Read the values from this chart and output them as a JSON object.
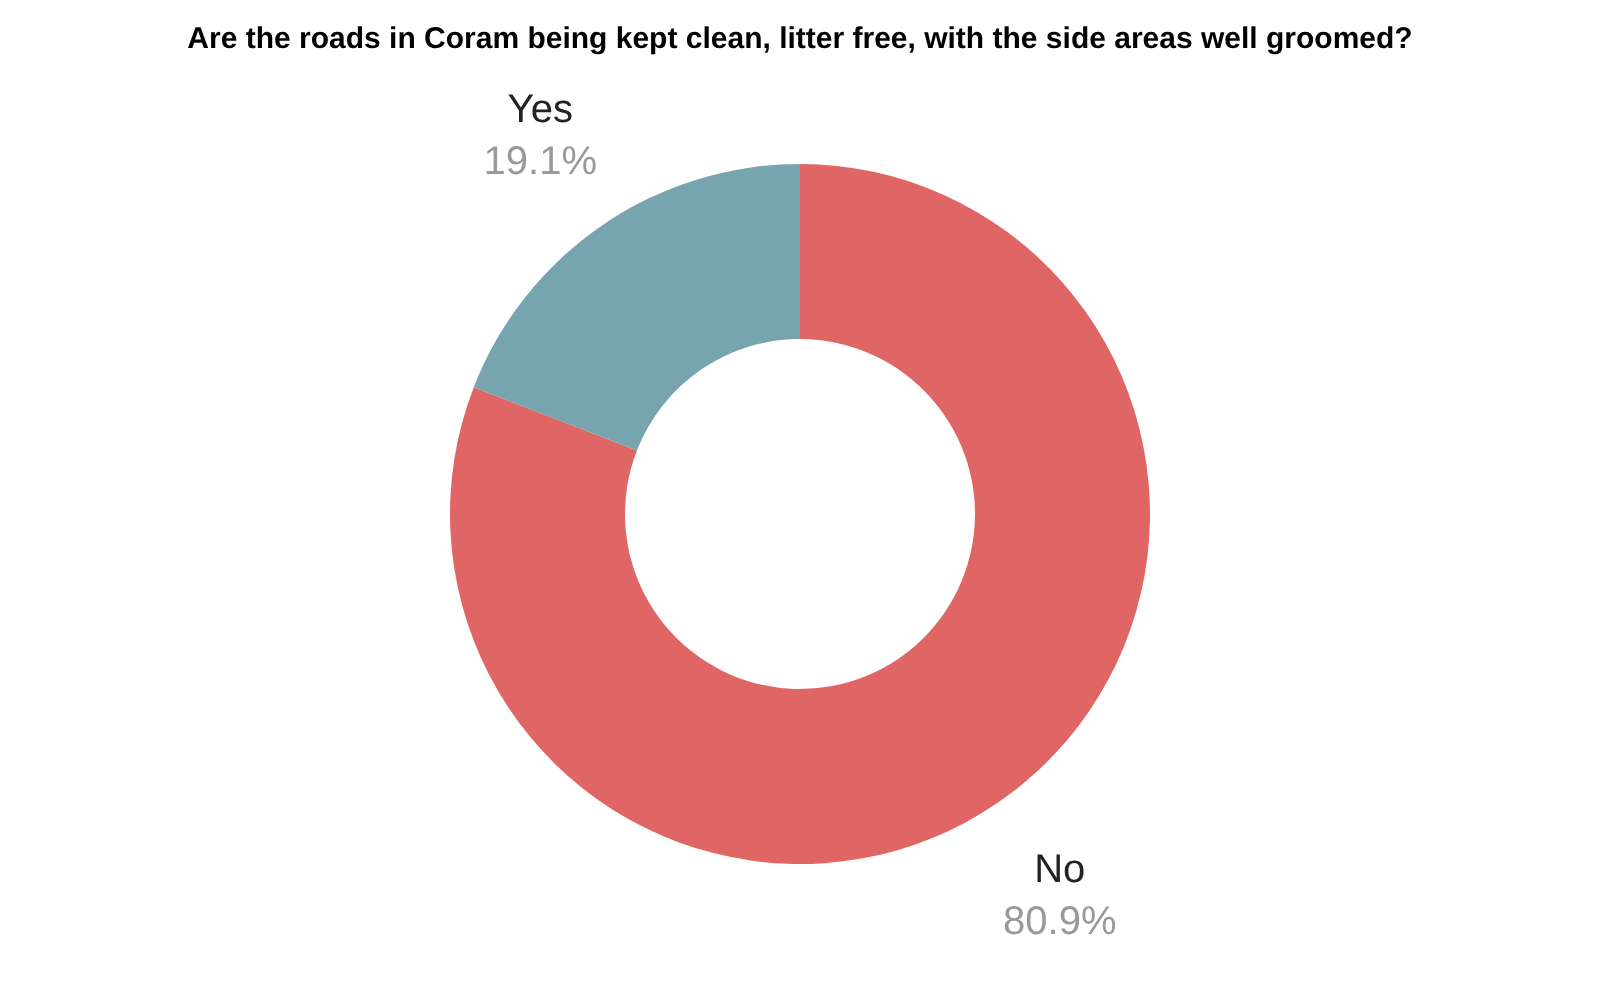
{
  "chart_data": {
    "type": "donut",
    "title": "Are the roads in Coram being kept clean, litter free, with the side areas well groomed?",
    "categories": [
      "No",
      "Yes"
    ],
    "values": [
      80.9,
      19.1
    ],
    "colors": [
      "#e06666",
      "#76a5af"
    ],
    "value_labels": [
      "80.9%",
      "19.1%"
    ]
  }
}
